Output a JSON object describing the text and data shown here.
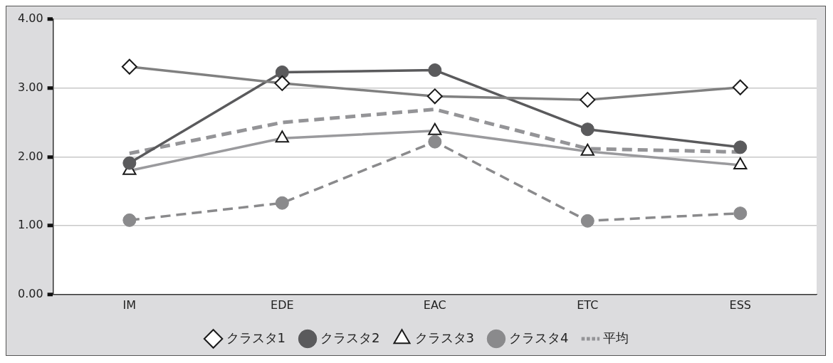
{
  "chart_data": {
    "type": "line",
    "categories": [
      "IM",
      "EDE",
      "EAC",
      "ETC",
      "ESS"
    ],
    "series": [
      {
        "name": "クラスタ1",
        "color": "#808080",
        "marker": "diamond",
        "line_style": "solid",
        "values": [
          3.31,
          3.07,
          2.88,
          2.83,
          3.01
        ]
      },
      {
        "name": "クラスタ2",
        "color": "#5a5a5c",
        "marker": "circle",
        "line_style": "solid",
        "values": [
          1.91,
          3.23,
          3.26,
          2.4,
          2.14
        ]
      },
      {
        "name": "クラスタ3",
        "color": "#9a9a9d",
        "marker": "triangle",
        "line_style": "solid",
        "values": [
          1.8,
          2.27,
          2.38,
          2.08,
          1.88
        ]
      },
      {
        "name": "クラスタ4",
        "color": "#8a8a8c",
        "marker": "circle",
        "line_style": "dashed",
        "values": [
          1.08,
          1.33,
          2.22,
          1.07,
          1.18
        ]
      },
      {
        "name": "平均",
        "color": "#949497",
        "marker": "none",
        "line_style": "dashed",
        "values": [
          2.05,
          2.5,
          2.69,
          2.12,
          2.07
        ]
      }
    ],
    "ylim": [
      0,
      4
    ],
    "yticks": [
      {
        "value": 0,
        "label": "0.00"
      },
      {
        "value": 1,
        "label": "1.00"
      },
      {
        "value": 2,
        "label": "2.00"
      },
      {
        "value": 3,
        "label": "3.00"
      },
      {
        "value": 4,
        "label": "4.00"
      }
    ],
    "grid": "y",
    "legend": "bottom"
  }
}
